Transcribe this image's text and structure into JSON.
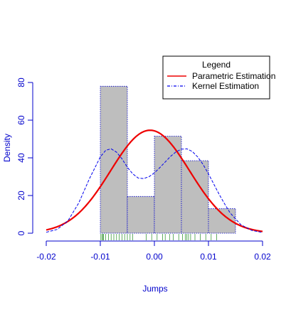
{
  "chart_data": {
    "type": "histogram",
    "xlabel": "Jumps",
    "ylabel": "Density",
    "xlim": [
      -0.02,
      0.02
    ],
    "ylim": [
      0,
      80
    ],
    "xticks": [
      "-0.02",
      "-0.01",
      "0.00",
      "0.01",
      "0.02"
    ],
    "xtick_values": [
      -0.02,
      -0.01,
      0.0,
      0.01,
      0.02
    ],
    "yticks": [
      "0",
      "20",
      "40",
      "60",
      "80"
    ],
    "ytick_values": [
      0,
      20,
      40,
      60,
      80
    ],
    "bins": [
      {
        "x0": -0.01,
        "x1": -0.005,
        "density": 78
      },
      {
        "x0": -0.005,
        "x1": 0.0,
        "density": 19.5
      },
      {
        "x0": 0.0,
        "x1": 0.005,
        "density": 51.5
      },
      {
        "x0": 0.005,
        "x1": 0.01,
        "density": 38.5
      },
      {
        "x0": 0.01,
        "x1": 0.015,
        "density": 13
      }
    ],
    "parametric": {
      "name": "Parametric Estimation",
      "color": "#ee0000",
      "mean": -0.0008,
      "sd": 0.0073
    },
    "kernel": {
      "name": "Kernel Estimation",
      "color": "#0000ee",
      "x": [
        -0.02,
        -0.018,
        -0.016,
        -0.014,
        -0.012,
        -0.01,
        -0.009,
        -0.008,
        -0.007,
        -0.006,
        -0.005,
        -0.004,
        -0.003,
        -0.002,
        -0.001,
        0.0,
        0.001,
        0.002,
        0.003,
        0.004,
        0.005,
        0.006,
        0.007,
        0.008,
        0.009,
        0.01,
        0.011,
        0.012,
        0.013,
        0.014,
        0.016,
        0.018,
        0.02
      ],
      "y": [
        0.5,
        2,
        6.5,
        16,
        29,
        40.5,
        44,
        44.8,
        43,
        39.5,
        35,
        31.5,
        29.3,
        29,
        30,
        32,
        34.8,
        37.8,
        40.8,
        43.2,
        44.6,
        44.8,
        43.4,
        40.5,
        36.5,
        31.5,
        26,
        20.5,
        15.5,
        10.8,
        4.5,
        1.5,
        0.4
      ]
    },
    "rug": [
      -0.0099,
      -0.0097,
      -0.0095,
      -0.0094,
      -0.009,
      -0.0085,
      -0.008,
      -0.0075,
      -0.007,
      -0.0065,
      -0.006,
      -0.0055,
      -0.005,
      -0.0045,
      -0.004,
      -0.0015,
      -0.0005,
      0.0005,
      0.0015,
      0.002,
      0.0028,
      0.0035,
      0.0045,
      0.0052,
      0.0057,
      0.006,
      0.0063,
      0.0067,
      0.0075,
      0.0085,
      0.0095,
      0.0105,
      0.0115
    ],
    "legend": {
      "title": "Legend",
      "position": "top-right",
      "items": [
        {
          "label": "Parametric Estimation",
          "color": "#ee0000",
          "style": "solid"
        },
        {
          "label": "Kernel Estimation",
          "color": "#0000ee",
          "style": "dashed"
        }
      ]
    },
    "colors": {
      "bar_fill": "#bebebe",
      "bar_border": "#0000cc",
      "axis": "#0000cc",
      "rug": "#228b22"
    }
  }
}
